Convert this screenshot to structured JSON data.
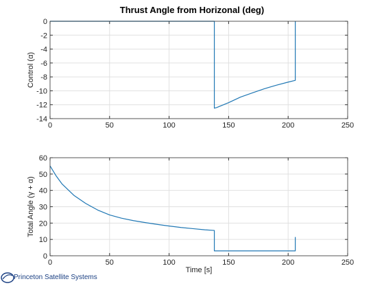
{
  "figure": {
    "title": "Thrust Angle from Horizonal (deg)",
    "logo_text": "Princeton Satellite Systems",
    "line_color": "#1f77b4"
  },
  "chart_data": [
    {
      "type": "line",
      "title": "Thrust Angle from Horizonal (deg)",
      "ylabel": "Control (α)",
      "xlabel": "",
      "xlim": [
        0,
        250
      ],
      "ylim": [
        -14,
        0
      ],
      "xticks": [
        0,
        50,
        100,
        150,
        200,
        250
      ],
      "yticks": [
        0,
        -2,
        -4,
        -6,
        -8,
        -10,
        -12,
        -14
      ],
      "grid": true,
      "series": [
        {
          "x": [
            0,
            138,
            138,
            140,
            150,
            160,
            170,
            180,
            190,
            200,
            206,
            206,
            206
          ],
          "y": [
            0,
            0,
            -12.5,
            -12.4,
            -11.7,
            -10.9,
            -10.3,
            -9.7,
            -9.2,
            -8.75,
            -8.5,
            -8.5,
            0
          ]
        }
      ]
    },
    {
      "type": "line",
      "title": "",
      "ylabel": "Total Angle (γ + α)",
      "xlabel": "Time [s]",
      "xlim": [
        0,
        250
      ],
      "ylim": [
        0,
        60
      ],
      "xticks": [
        0,
        50,
        100,
        150,
        200,
        250
      ],
      "yticks": [
        0,
        10,
        20,
        30,
        40,
        50,
        60
      ],
      "grid": true,
      "series": [
        {
          "x": [
            0,
            5,
            10,
            20,
            30,
            40,
            50,
            60,
            70,
            80,
            90,
            100,
            110,
            120,
            130,
            138,
            138,
            150,
            175,
            206,
            206
          ],
          "y": [
            55,
            49,
            44,
            37,
            32,
            28,
            25,
            23,
            21.5,
            20.3,
            19.2,
            18.2,
            17.3,
            16.6,
            15.9,
            15.5,
            3,
            3,
            3,
            3,
            11.5
          ]
        }
      ]
    }
  ]
}
